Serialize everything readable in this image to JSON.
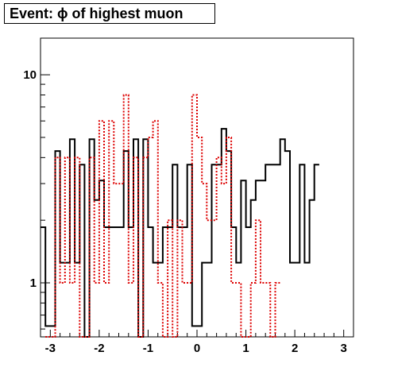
{
  "chart_data": {
    "type": "histogram",
    "title": "Event: ϕ of highest muon",
    "xlabel": "",
    "ylabel": "",
    "xlim": [
      -3.2,
      3.2
    ],
    "ylim": [
      0.55,
      15
    ],
    "yscale": "log",
    "x_ticks": [
      "-3",
      "-2",
      "-1",
      "0",
      "1",
      "2",
      "3"
    ],
    "y_ticks": [
      "1",
      "10"
    ],
    "bin_edges": [
      -3.2,
      -3.1,
      -3.0,
      -2.9,
      -2.8,
      -2.7,
      -2.6,
      -2.5,
      -2.4,
      -2.3,
      -2.2,
      -2.1,
      -2.0,
      -1.9,
      -1.8,
      -1.7,
      -1.6,
      -1.5,
      -1.4,
      -1.3,
      -1.2,
      -1.1,
      -1.0,
      -0.9,
      -0.8,
      -0.7,
      -0.6,
      -0.5,
      -0.4,
      -0.3,
      -0.2,
      -0.1,
      0.0,
      0.1,
      0.2,
      0.3,
      0.4,
      0.5,
      0.6,
      0.7,
      0.8,
      0.9,
      1.0,
      1.1,
      1.2,
      1.3,
      1.4,
      1.5,
      1.6,
      1.7,
      1.8,
      1.9,
      2.0,
      2.1,
      2.2,
      2.3,
      2.4,
      2.5,
      2.6,
      2.7,
      2.8,
      2.9,
      3.0,
      3.1,
      3.2
    ],
    "series": [
      {
        "name": "",
        "color": "#000000",
        "style": "solid",
        "values": [
          1.85,
          0.62,
          0.62,
          4.3,
          1.25,
          1.25,
          4.9,
          1.25,
          3.7,
          0.5,
          4.9,
          2.5,
          3.1,
          1.85,
          1.85,
          1.85,
          1.85,
          4.3,
          1.85,
          4.9,
          0.5,
          4.9,
          1.85,
          1.25,
          1.25,
          1.85,
          1.85,
          3.7,
          1.85,
          1.85,
          3.7,
          0.62,
          0.62,
          1.25,
          1.25,
          3.7,
          3.7,
          5.5,
          4.3,
          1.85,
          1.25,
          3.1,
          1.85,
          2.5,
          3.1,
          3.1,
          3.7,
          3.7,
          3.7,
          4.9,
          4.3,
          1.25,
          1.25,
          3.7,
          1.25,
          2.5,
          3.7
        ],
        "offset_bins": 0
      },
      {
        "name": "",
        "color": "#dd0000",
        "style": "dotted",
        "values": [
          0.5,
          0.5,
          4.0,
          1.0,
          4.0,
          1.0,
          4.0,
          0.5,
          0.5,
          4.0,
          1.0,
          6.0,
          1.0,
          6.0,
          3.0,
          3.0,
          8.0,
          1.0,
          4.0,
          0.5,
          4.0,
          5.0,
          6.0,
          1.0,
          0.5,
          2.0,
          0.5,
          2.0,
          1.0,
          1.0,
          8.0,
          5.0,
          3.0,
          2.0,
          2.0,
          4.0,
          3.0,
          5.0,
          1.0,
          1.0,
          0.5,
          0.5,
          1.0,
          2.0,
          1.0,
          1.0,
          0.5,
          1.0
        ],
        "offset_bins": 1
      }
    ]
  }
}
